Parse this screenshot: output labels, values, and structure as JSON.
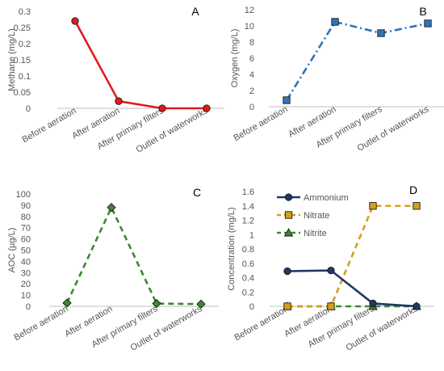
{
  "chart_data": [
    {
      "type": "line",
      "panel_label": "A",
      "ylabel": "Methane (mg/L)",
      "categories": [
        "Before aeration",
        "After aeration",
        "After primary filters",
        "Outlet of waterworks"
      ],
      "yticks": [
        "0",
        "0.05",
        "0.1",
        "0.15",
        "0.2",
        "0.25",
        "0.3"
      ],
      "ylim": [
        0,
        0.3
      ],
      "series": [
        {
          "values": [
            0.27,
            0.022,
            0.0,
            0.0
          ],
          "color": "#e41a1c",
          "marker": "circle",
          "dash": "solid"
        }
      ]
    },
    {
      "type": "line",
      "panel_label": "B",
      "ylabel": "Oxygen (mg/L)",
      "categories": [
        "Before aeration",
        "After aeration",
        "After primary filters",
        "Outlet of waterworks"
      ],
      "yticks": [
        "0",
        "2",
        "4",
        "6",
        "8",
        "10",
        "12"
      ],
      "ylim": [
        0,
        12
      ],
      "series": [
        {
          "values": [
            0.8,
            10.5,
            9.1,
            10.3
          ],
          "color": "#2e75b6",
          "marker": "square",
          "dash": "dashdot"
        }
      ]
    },
    {
      "type": "line",
      "panel_label": "C",
      "ylabel": "AOC (µg/L)",
      "categories": [
        "Before aeration",
        "After aeration",
        "After primary filters",
        "Outlet of waterworks"
      ],
      "yticks": [
        "0",
        "10",
        "20",
        "30",
        "40",
        "50",
        "60",
        "70",
        "80",
        "90",
        "100"
      ],
      "ylim": [
        0,
        100
      ],
      "series": [
        {
          "values": [
            3,
            88,
            2.5,
            2
          ],
          "color": "#3a8a2e",
          "marker": "diamond",
          "dash": "dashed"
        }
      ]
    },
    {
      "type": "line",
      "panel_label": "D",
      "ylabel": "Concentration (mg/L)",
      "categories": [
        "Before aeration",
        "After aeration",
        "After primary filters",
        "Outlet of waterworks"
      ],
      "yticks": [
        "0",
        "0.2",
        "0.4",
        "0.6",
        "0.8",
        "1",
        "1.2",
        "1.4",
        "1.6"
      ],
      "ylim": [
        0,
        1.6
      ],
      "legend": "top-left",
      "series": [
        {
          "name": "Ammonium",
          "values": [
            0.49,
            0.5,
            0.04,
            0.0
          ],
          "color": "#1f3864",
          "marker": "circle",
          "dash": "solid"
        },
        {
          "name": "Nitrate",
          "values": [
            0.0,
            0.0,
            1.4,
            1.4
          ],
          "color": "#d4a017",
          "marker": "square",
          "dash": "dashed"
        },
        {
          "name": "Nitrite",
          "values": [
            0.0,
            0.0,
            0.0,
            0.0
          ],
          "color": "#3a8a2e",
          "marker": "triangle",
          "dash": "dashed"
        }
      ]
    }
  ]
}
